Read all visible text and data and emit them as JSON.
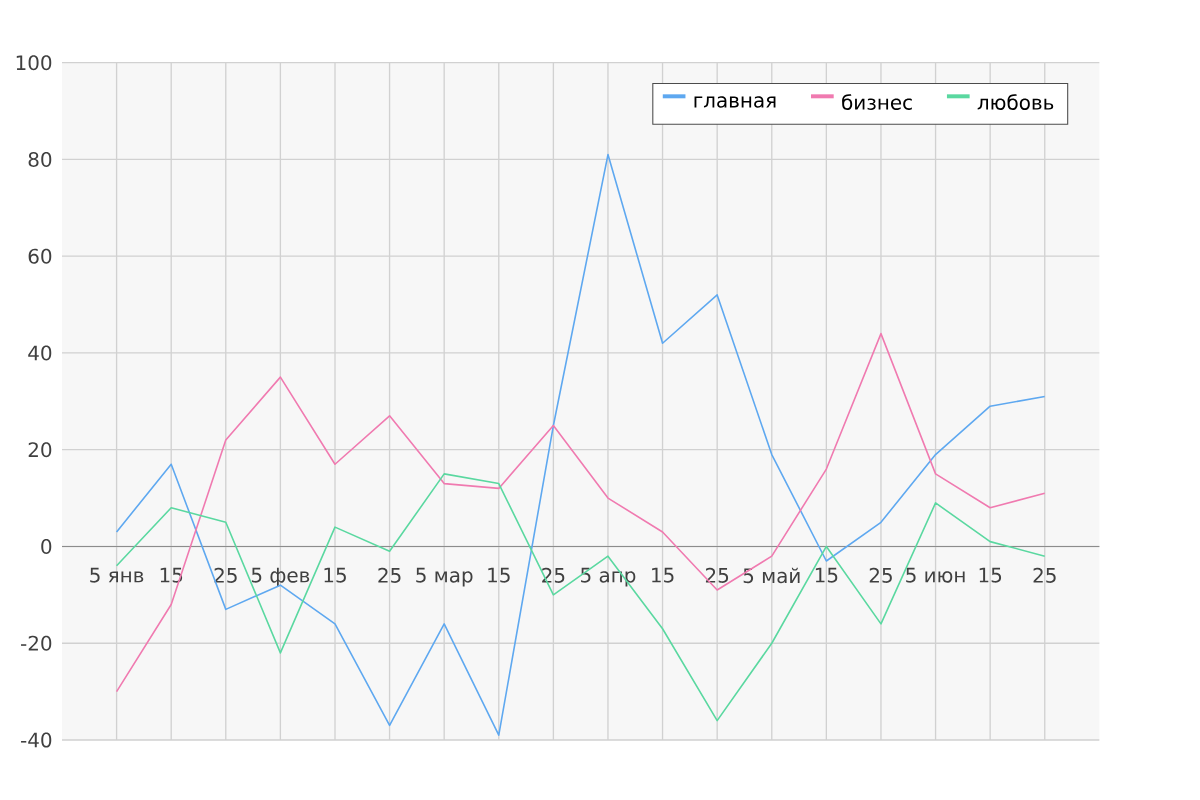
{
  "chart_data": {
    "type": "line",
    "categories": [
      "5 янв",
      "15",
      "25",
      "5 фев",
      "15",
      "25",
      "5 мар",
      "15",
      "25",
      "5 апр",
      "15",
      "25",
      "5 май",
      "15",
      "25",
      "5 июн",
      "15",
      "25"
    ],
    "series": [
      {
        "name": "главная",
        "color": "#5ea8f0",
        "values": [
          3,
          17,
          -13,
          -8,
          -16,
          -37,
          -16,
          -39,
          25,
          81,
          42,
          52,
          19,
          -3,
          5,
          19,
          29,
          31
        ]
      },
      {
        "name": "бизнес",
        "color": "#f07ab0",
        "values": [
          -30,
          -12,
          22,
          35,
          17,
          27,
          13,
          12,
          25,
          10,
          3,
          -9,
          -2,
          16,
          44,
          15,
          8,
          11
        ]
      },
      {
        "name": "любовь",
        "color": "#5ad8a0",
        "values": [
          -4,
          8,
          5,
          -22,
          4,
          -1,
          15,
          13,
          -10,
          -2,
          -17,
          -36,
          -20,
          0,
          -16,
          9,
          1,
          -2
        ]
      }
    ],
    "ylim": [
      -40,
      100
    ],
    "yticks": [
      -40,
      -20,
      0,
      20,
      40,
      60,
      80,
      100
    ],
    "grid": true,
    "legend": "top right",
    "line_style": "solid"
  }
}
